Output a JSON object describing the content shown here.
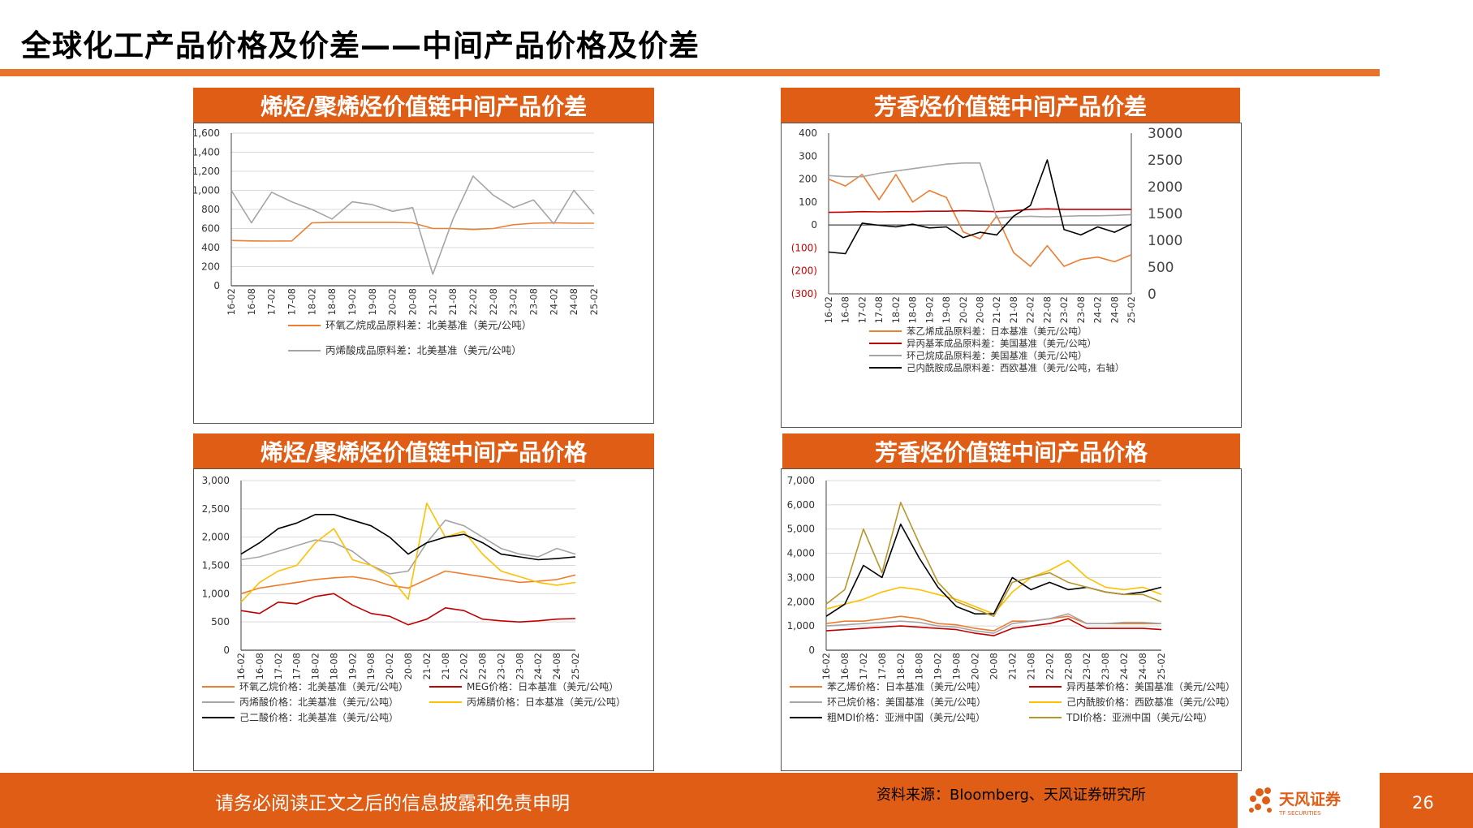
{
  "header": {
    "title": "全球化工产品价格及价差——中间产品价格及价差"
  },
  "footer": {
    "disclaimer": "请务必阅读正文之后的信息披露和免责申明",
    "source": "资料来源：Bloomberg、天风证券研究所",
    "page_number": "26",
    "logo_text": "天风证券",
    "logo_subtext": "TF SECURITIES"
  },
  "panels": {
    "p1": {
      "title": "烯烃/聚烯烃价值链中间产品价差"
    },
    "p2": {
      "title": "芳香烃价值链中间产品价差"
    },
    "p3": {
      "title": "烯烃/聚烯烃价值链中间产品价格"
    },
    "p4": {
      "title": "芳香烃价值链中间产品价格"
    }
  },
  "chart_data": [
    {
      "id": "p1",
      "type": "line",
      "title": "烯烃/聚烯烃价值链中间产品价差",
      "x": [
        "16-02",
        "16-08",
        "17-02",
        "17-08",
        "18-02",
        "18-08",
        "19-02",
        "19-08",
        "20-02",
        "20-08",
        "21-02",
        "21-08",
        "22-02",
        "22-08",
        "23-02",
        "23-08",
        "24-02",
        "24-08",
        "25-02"
      ],
      "ylim": [
        0,
        1600
      ],
      "yticks": [
        "0",
        "200",
        "400",
        "600",
        "800",
        "1,000",
        "1,200",
        "1,400",
        "1,600"
      ],
      "grid": true,
      "legend": "bottom",
      "series": [
        {
          "name": "环氧乙烷成品原料差：北美基准（美元/公吨）",
          "color": "#ed7d31",
          "values": [
            475,
            470,
            468,
            470,
            660,
            665,
            665,
            665,
            665,
            660,
            600,
            600,
            590,
            600,
            640,
            655,
            660,
            655,
            655
          ]
        },
        {
          "name": "丙烯酸成品原料差：北美基准（美元/公吨）",
          "color": "#a5a5a5",
          "values": [
            1000,
            660,
            980,
            880,
            800,
            700,
            880,
            850,
            780,
            820,
            120,
            700,
            1150,
            950,
            820,
            900,
            650,
            1000,
            750
          ]
        }
      ]
    },
    {
      "id": "p2",
      "type": "line",
      "title": "芳香烃价值链中间产品价差",
      "x": [
        "16-02",
        "16-08",
        "17-02",
        "17-08",
        "18-02",
        "18-08",
        "19-02",
        "19-08",
        "20-02",
        "20-08",
        "21-02",
        "21-08",
        "22-02",
        "22-08",
        "23-02",
        "23-08",
        "24-02",
        "24-08",
        "25-02"
      ],
      "ylim": [
        -300,
        400
      ],
      "yticks": [
        "(300)",
        "(200)",
        "(100)",
        "0",
        "100",
        "200",
        "300",
        "400"
      ],
      "y2lim": [
        0,
        3000
      ],
      "y2ticks": [
        "0",
        "500",
        "1000",
        "1500",
        "2000",
        "2500",
        "3000"
      ],
      "grid": false,
      "legend": "bottom",
      "series": [
        {
          "name": "苯乙烯成品原料差：日本基准（美元/公吨）",
          "color": "#ed7d31",
          "axis": "left",
          "values": [
            200,
            170,
            220,
            110,
            220,
            100,
            150,
            120,
            -30,
            -60,
            40,
            -120,
            -180,
            -90,
            -180,
            -150,
            -140,
            -160,
            -130
          ]
        },
        {
          "name": "异丙基苯成品原料差：美国基准（美元/公吨）",
          "color": "#c00000",
          "axis": "left",
          "values": [
            55,
            56,
            58,
            57,
            58,
            58,
            60,
            60,
            62,
            60,
            58,
            62,
            68,
            70,
            68,
            68,
            68,
            68,
            68
          ]
        },
        {
          "name": "环己烷成品原料差：美国基准（美元/公吨）",
          "color": "#a5a5a5",
          "axis": "left",
          "values": [
            215,
            210,
            210,
            225,
            235,
            245,
            255,
            265,
            270,
            270,
            30,
            35,
            38,
            35,
            38,
            40,
            40,
            42,
            45
          ]
        },
        {
          "name": "己内酰胺成品原料差：西欧基准（美元/公吨，右轴）",
          "color": "#000000",
          "axis": "right",
          "values": [
            780,
            750,
            1320,
            1280,
            1250,
            1300,
            1230,
            1250,
            1050,
            1150,
            1100,
            1450,
            1650,
            2500,
            1200,
            1100,
            1250,
            1150,
            1300
          ]
        }
      ]
    },
    {
      "id": "p3",
      "type": "line",
      "title": "烯烃/聚烯烃价值链中间产品价格",
      "x": [
        "16-02",
        "16-08",
        "17-02",
        "17-08",
        "18-02",
        "18-08",
        "19-02",
        "19-08",
        "20-02",
        "20-08",
        "21-02",
        "21-08",
        "22-02",
        "22-08",
        "23-02",
        "23-08",
        "24-02",
        "24-08",
        "25-02"
      ],
      "ylim": [
        0,
        3000
      ],
      "yticks": [
        "0",
        "500",
        "1,000",
        "1,500",
        "2,000",
        "2,500",
        "3,000"
      ],
      "grid": true,
      "legend": "bottom",
      "series": [
        {
          "name": "环氧乙烷价格：北美基准（美元/公吨）",
          "color": "#ed7d31",
          "values": [
            1000,
            1100,
            1150,
            1200,
            1250,
            1280,
            1300,
            1250,
            1150,
            1100,
            1250,
            1400,
            1350,
            1300,
            1250,
            1200,
            1220,
            1250,
            1330
          ]
        },
        {
          "name": "MEG价格：日本基准（美元/公吨）",
          "color": "#c00000",
          "values": [
            700,
            650,
            850,
            820,
            950,
            1000,
            800,
            650,
            600,
            450,
            550,
            750,
            700,
            550,
            520,
            500,
            520,
            550,
            560
          ]
        },
        {
          "name": "丙烯酸价格：北美基准（美元/公吨）",
          "color": "#a5a5a5",
          "values": [
            1600,
            1650,
            1750,
            1850,
            1950,
            1900,
            1750,
            1500,
            1350,
            1400,
            1900,
            2300,
            2200,
            2000,
            1800,
            1700,
            1650,
            1800,
            1700
          ]
        },
        {
          "name": "丙烯腈价格：日本基准（美元/公吨）",
          "color": "#ffc000",
          "values": [
            850,
            1200,
            1400,
            1500,
            1900,
            2150,
            1600,
            1500,
            1300,
            900,
            2600,
            2000,
            2100,
            1700,
            1400,
            1300,
            1200,
            1150,
            1200
          ]
        },
        {
          "name": "己二酸价格：北美基准（美元/公吨）",
          "color": "#000000",
          "values": [
            1700,
            1900,
            2150,
            2250,
            2400,
            2400,
            2300,
            2200,
            2000,
            1700,
            1900,
            2000,
            2050,
            1900,
            1700,
            1650,
            1600,
            1620,
            1650
          ]
        }
      ]
    },
    {
      "id": "p4",
      "type": "line",
      "title": "芳香烃价值链中间产品价格",
      "x": [
        "16-02",
        "16-08",
        "17-02",
        "17-08",
        "18-02",
        "18-08",
        "19-02",
        "19-08",
        "20-02",
        "20-08",
        "21-02",
        "21-08",
        "22-02",
        "22-08",
        "23-02",
        "23-08",
        "24-02",
        "24-08",
        "25-02"
      ],
      "ylim": [
        0,
        7000
      ],
      "yticks": [
        "0",
        "1,000",
        "2,000",
        "3,000",
        "4,000",
        "5,000",
        "6,000",
        "7,000"
      ],
      "grid": true,
      "legend": "bottom",
      "series": [
        {
          "name": "苯乙烯价格：日本基准（美元/公吨）",
          "color": "#ed7d31",
          "values": [
            1100,
            1200,
            1200,
            1300,
            1400,
            1300,
            1100,
            1050,
            900,
            800,
            1200,
            1200,
            1300,
            1400,
            1100,
            1100,
            1100,
            1100,
            1100
          ]
        },
        {
          "name": "异丙基苯价格：美国基准（美元/公吨）",
          "color": "#c00000",
          "values": [
            800,
            850,
            900,
            950,
            1000,
            950,
            900,
            850,
            700,
            600,
            900,
            1000,
            1100,
            1300,
            900,
            900,
            900,
            900,
            850
          ]
        },
        {
          "name": "环己烷价格：美国基准（美元/公吨）",
          "color": "#a5a5a5",
          "values": [
            1000,
            1050,
            1100,
            1150,
            1200,
            1150,
            1000,
            950,
            800,
            700,
            1100,
            1200,
            1300,
            1500,
            1100,
            1100,
            1150,
            1150,
            1100
          ]
        },
        {
          "name": "己内酰胺价格：西欧基准（美元/公吨）",
          "color": "#ffc000",
          "values": [
            1700,
            1900,
            2100,
            2400,
            2600,
            2500,
            2300,
            2100,
            1800,
            1500,
            2400,
            3000,
            3300,
            3700,
            3000,
            2600,
            2500,
            2600,
            2300
          ]
        },
        {
          "name": "粗MDI价格：亚洲中国（美元/公吨）",
          "color": "#000000",
          "values": [
            1400,
            1900,
            3500,
            3000,
            5200,
            3800,
            2600,
            1800,
            1500,
            1500,
            3000,
            2500,
            2800,
            2500,
            2600,
            2400,
            2300,
            2400,
            2600
          ]
        },
        {
          "name": "TDI价格：亚洲中国（美元/公吨）",
          "color": "#b8962e",
          "values": [
            1900,
            2500,
            5000,
            3200,
            6100,
            4400,
            2800,
            2000,
            1700,
            1400,
            2800,
            3000,
            3200,
            2800,
            2600,
            2400,
            2300,
            2300,
            2000
          ]
        }
      ]
    }
  ]
}
